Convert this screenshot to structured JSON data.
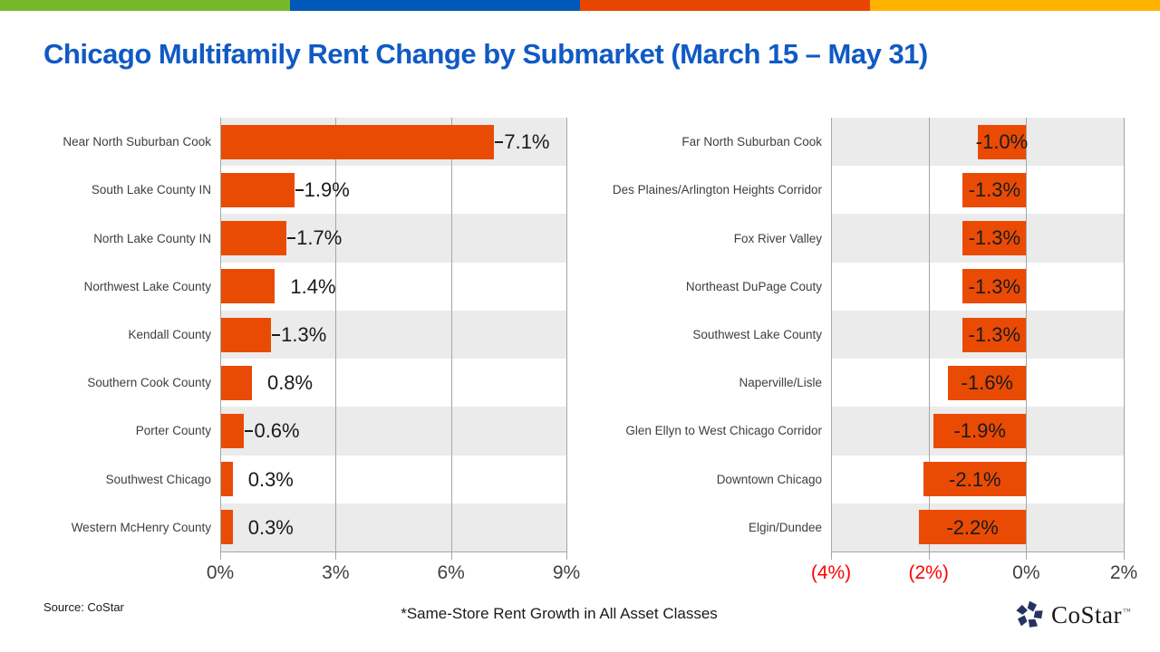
{
  "title": "Chicago Multifamily Rent Change by Submarket (March 15 – May 31)",
  "title_color": "#105AC4",
  "top_stripe": {
    "colors": [
      "#76B82A",
      "#0058B9",
      "#E84600",
      "#FFB300"
    ]
  },
  "chart_data": [
    {
      "type": "bar",
      "orientation": "horizontal",
      "title": "",
      "xlabel": "",
      "ylabel": "",
      "categories": [
        "Near North Suburban Cook",
        "South Lake County IN",
        "North Lake County IN",
        "Northwest Lake County",
        "Kendall County",
        "Southern Cook County",
        "Porter County",
        "Southwest Chicago",
        "Western McHenry County"
      ],
      "values": [
        7.1,
        1.9,
        1.7,
        1.4,
        1.3,
        0.8,
        0.6,
        0.3,
        0.3
      ],
      "data_labels": [
        "7.1%",
        "1.9%",
        "1.7%",
        "1.4%",
        "1.3%",
        "0.8%",
        "0.6%",
        "0.3%",
        "0.3%"
      ],
      "leader_lines": [
        true,
        true,
        true,
        false,
        true,
        false,
        true,
        false,
        false
      ],
      "xlim": [
        0,
        9
      ],
      "xticks": [
        0,
        3,
        6,
        9
      ],
      "xtick_labels": [
        "0%",
        "3%",
        "6%",
        "9%"
      ],
      "xtick_colors": [
        "#3F3F3F",
        "#3F3F3F",
        "#3F3F3F",
        "#3F3F3F"
      ],
      "grid": true,
      "legend": false,
      "value_label_position": "outside-end",
      "bar_color": "#E94B04",
      "band_colors": [
        "#EBEBEB",
        "#FFFFFF"
      ],
      "grid_color": "#A6A6A6",
      "label_color": "#3E3E3E",
      "value_color": "#1A1A1A"
    },
    {
      "type": "bar",
      "orientation": "horizontal",
      "title": "",
      "xlabel": "",
      "ylabel": "",
      "categories": [
        "Far North Suburban Cook",
        "Des Plaines/Arlington Heights Corridor",
        "Fox River Valley",
        "Northeast DuPage Couty",
        "Southwest Lake County",
        "Naperville/Lisle",
        "Glen Ellyn to West Chicago Corridor",
        "Downtown Chicago",
        "Elgin/Dundee"
      ],
      "values": [
        -1.0,
        -1.3,
        -1.3,
        -1.3,
        -1.3,
        -1.6,
        -1.9,
        -2.1,
        -2.2
      ],
      "data_labels": [
        "-1.0%",
        "-1.3%",
        "-1.3%",
        "-1.3%",
        "-1.3%",
        "-1.6%",
        "-1.9%",
        "-2.1%",
        "-2.2%"
      ],
      "leader_lines": [
        false,
        false,
        false,
        false,
        false,
        false,
        false,
        false,
        false
      ],
      "xlim": [
        -4,
        2
      ],
      "xticks": [
        -4,
        -2,
        0,
        2
      ],
      "xtick_labels": [
        "(4%)",
        "(2%)",
        "0%",
        "2%"
      ],
      "xtick_colors": [
        "#FF0000",
        "#FF0000",
        "#3F3F3F",
        "#3F3F3F"
      ],
      "grid": true,
      "legend": false,
      "value_label_position": "center",
      "bar_color": "#E94B04",
      "band_colors": [
        "#EBEBEB",
        "#FFFFFF"
      ],
      "grid_color": "#A6A6A6",
      "label_color": "#3E3E3E",
      "value_color": "#1A1A1A"
    }
  ],
  "footer": {
    "source": "Source: CoStar",
    "footnote": "*Same-Store Rent Growth in All Asset Classes",
    "logo_text": "CoStar",
    "logo_tm": "™",
    "logo_color": "#28345F"
  }
}
